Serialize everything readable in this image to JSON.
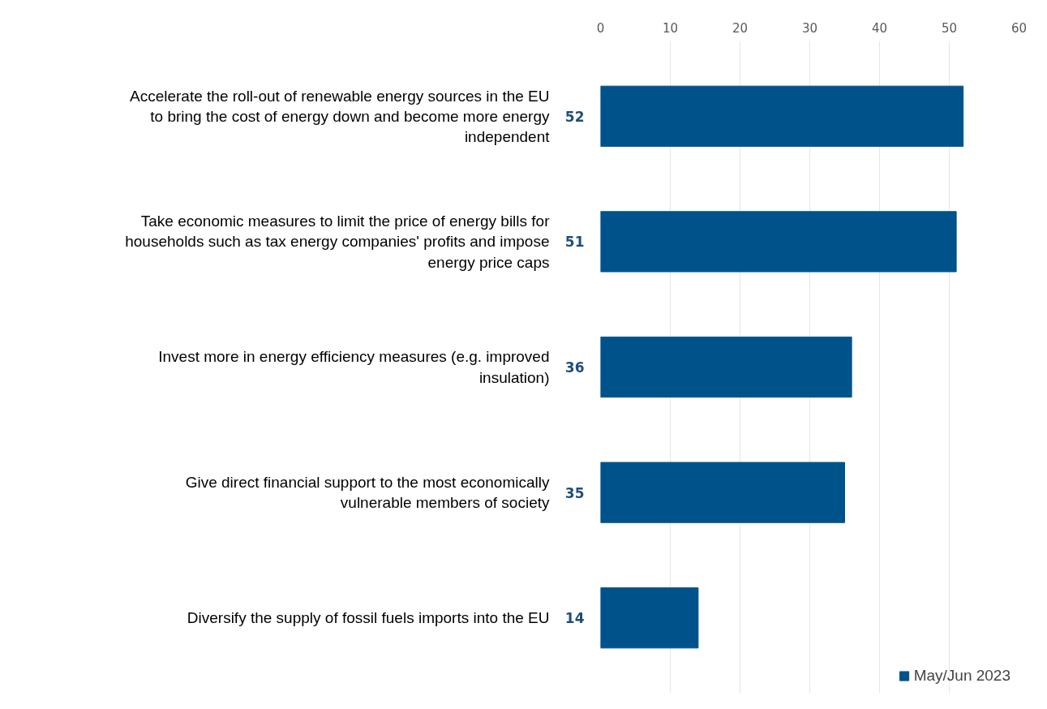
{
  "chart_data": {
    "type": "bar",
    "orientation": "horizontal",
    "categories": [
      "Accelerate the roll-out of renewable energy sources in the EU\nto bring the cost of energy down and become more energy\nindependent",
      "Take economic measures to limit the price of energy bills for\nhouseholds such as tax energy companies' profits and impose\nenergy price caps",
      "Invest more in energy efficiency measures (e.g. improved\ninsulation)",
      "Give direct financial support to the most economically\nvulnerable members of society",
      "Diversify the supply of fossil fuels imports into the EU"
    ],
    "series": [
      {
        "name": "May/Jun 2023",
        "color": "#00538a",
        "values": [
          52,
          51,
          36,
          35,
          14
        ]
      }
    ],
    "xlim": [
      0,
      60
    ],
    "xticks": [
      0,
      10,
      20,
      30,
      40,
      50,
      60
    ],
    "grid": "x",
    "legend": "bottom right",
    "data_labels": true
  }
}
